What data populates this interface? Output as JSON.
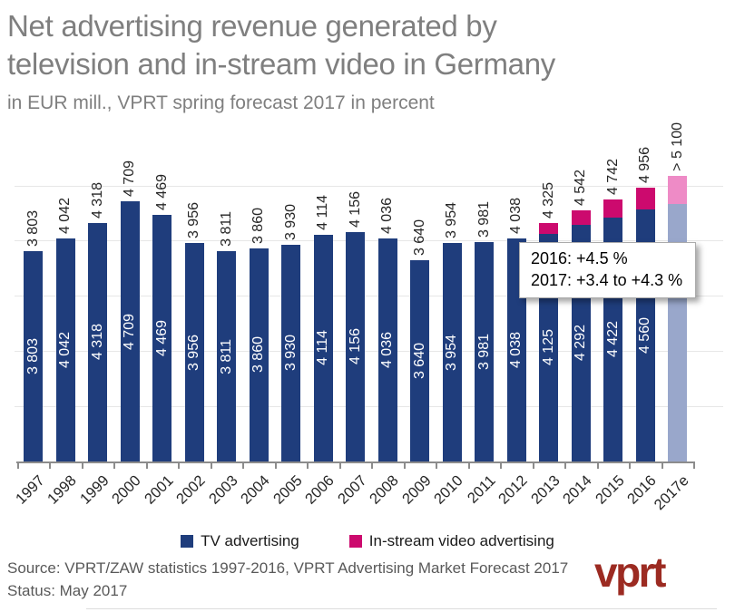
{
  "header": {
    "title_line1": "Net advertising revenue generated by",
    "title_line2": "television and in-stream video in Germany",
    "subtitle": "in EUR mill., VPRT spring forecast 2017 in percent"
  },
  "chart_data": {
    "type": "bar",
    "stacked": true,
    "title": "Net advertising revenue generated by television and in-stream video in Germany",
    "subtitle": "in EUR mill., VPRT spring forecast 2017 in percent",
    "unit": "EUR mill.",
    "ylim": [
      0,
      5400
    ],
    "gridlines": [
      1000,
      2000,
      3000,
      4000,
      5000
    ],
    "grid": "horizontal light gray, no y-axis tick labels",
    "legend_position": "bottom",
    "categories": [
      "1997",
      "1998",
      "1999",
      "2000",
      "2001",
      "2002",
      "2003",
      "2004",
      "2005",
      "2006",
      "2007",
      "2008",
      "2009",
      "2010",
      "2011",
      "2012",
      "2013",
      "2014",
      "2015",
      "2016",
      "2017e"
    ],
    "forecast_category": "2017e",
    "series": [
      {
        "name": "TV advertising",
        "color": "#1f3d7c",
        "forecast_color": "#99a7cb",
        "values": [
          3803,
          4042,
          4318,
          4709,
          4469,
          3956,
          3811,
          3860,
          3930,
          4114,
          4156,
          4036,
          3640,
          3954,
          3981,
          4038,
          4125,
          4292,
          4422,
          4560,
          4670
        ],
        "labels": [
          "3 803",
          "4 042",
          "4 318",
          "4 709",
          "4 469",
          "3 956",
          "3 811",
          "3 860",
          "3 930",
          "4 114",
          "4 156",
          "4 036",
          "3 640",
          "3 954",
          "3 981",
          "4 038",
          "4 125",
          "4 292",
          "4 422",
          "4 560",
          ""
        ]
      },
      {
        "name": "In-stream video advertising",
        "color": "#cc0a6e",
        "forecast_color": "#ee8bc6",
        "values": [
          0,
          0,
          0,
          0,
          0,
          0,
          0,
          0,
          0,
          0,
          0,
          0,
          0,
          0,
          0,
          0,
          200,
          250,
          320,
          396,
          500
        ],
        "labels": [
          "",
          "",
          "",
          "",
          "",
          "",
          "",
          "",
          "",
          "",
          "",
          "",
          "",
          "",
          "",
          "",
          "",
          "",
          "",
          "",
          ""
        ]
      }
    ],
    "total_labels": [
      "3 803",
      "4 042",
      "4 318",
      "4 709",
      "4 469",
      "3 956",
      "3 811",
      "3 860",
      "3 930",
      "4 114",
      "4 156",
      "4 036",
      "3 640",
      "3 954",
      "3 981",
      "4 038",
      "4 325",
      "4 542",
      "4 742",
      "4 956",
      "> 5 100"
    ],
    "annotation": {
      "line1": "2016: +4.5 %",
      "line2": "2017: +3.4 to +4.3 %"
    }
  },
  "legend": {
    "items": [
      {
        "label": "TV advertising",
        "color": "#1f3d7c"
      },
      {
        "label": "In-stream video advertising",
        "color": "#cc0a6e"
      }
    ]
  },
  "footer": {
    "source_line": "Source: VPRT/ZAW statistics 1997-2016, VPRT Advertising Market Forecast 2017",
    "status_line": "Status:  May 2017",
    "logo_text": "vprt"
  }
}
